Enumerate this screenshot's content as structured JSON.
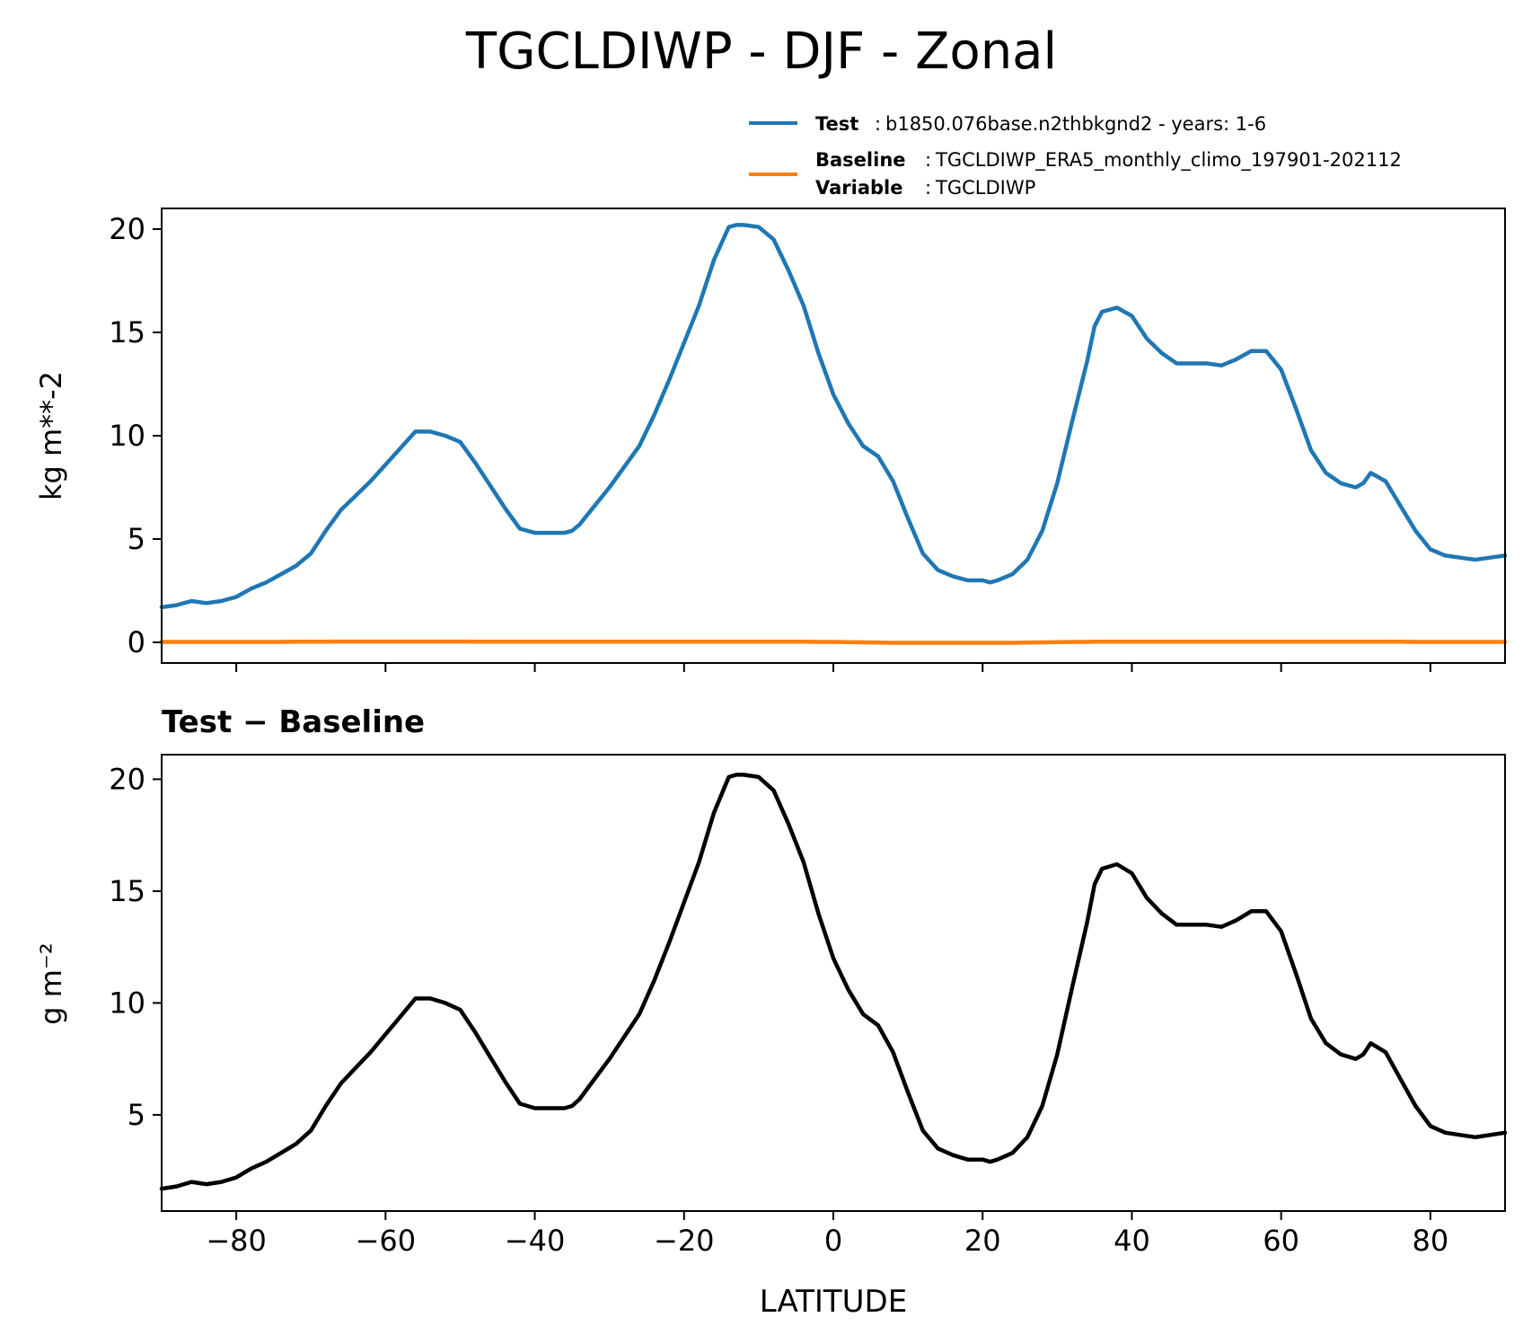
{
  "figure": {
    "title": "TGCLDIWP - DJF - Zonal"
  },
  "legend": {
    "test_label": "Test",
    "test_value": "b1850.076base.n2thbkgnd2 - years: 1-6",
    "baseline_label": "Baseline",
    "baseline_value": "TGCLDIWP_ERA5_monthly_climo_197901-202112",
    "variable_label": "Variable",
    "variable_value": "TGCLDIWP",
    "colors": {
      "test": "#1f77b4",
      "baseline": "#ff7f0e",
      "difference": "#000000"
    }
  },
  "chart_data": [
    {
      "type": "line",
      "title": "",
      "xlabel": "",
      "ylabel": "kg m**-2",
      "xlim": [
        -90,
        90
      ],
      "ylim": [
        -1,
        21
      ],
      "yticks": [
        0,
        5,
        10,
        15,
        20
      ],
      "xticks": [
        -80,
        -60,
        -40,
        -20,
        0,
        20,
        40,
        60,
        80
      ],
      "show_xticklabels": false,
      "legend_position": "above-right",
      "x": [
        -90,
        -88,
        -86,
        -84,
        -82,
        -80,
        -78,
        -76,
        -74,
        -72,
        -70,
        -68,
        -66,
        -64,
        -62,
        -60,
        -58,
        -56,
        -54,
        -52,
        -50,
        -48,
        -46,
        -44,
        -42,
        -40,
        -38,
        -36,
        -35,
        -34,
        -32,
        -30,
        -28,
        -26,
        -24,
        -22,
        -20,
        -18,
        -16,
        -14,
        -13,
        -12,
        -10,
        -8,
        -6,
        -4,
        -2,
        0,
        2,
        4,
        6,
        8,
        10,
        12,
        14,
        16,
        18,
        20,
        21,
        22,
        24,
        26,
        28,
        30,
        32,
        34,
        35,
        36,
        38,
        40,
        42,
        44,
        46,
        48,
        50,
        52,
        54,
        56,
        58,
        60,
        62,
        64,
        66,
        68,
        70,
        71,
        72,
        74,
        76,
        78,
        80,
        82,
        84,
        86,
        88,
        90
      ],
      "series": [
        {
          "name": "Test",
          "color": "#1f77b4",
          "values": [
            1.7,
            1.8,
            2.0,
            1.9,
            2.0,
            2.2,
            2.6,
            2.9,
            3.3,
            3.7,
            4.3,
            5.4,
            6.4,
            7.1,
            7.8,
            8.6,
            9.4,
            10.2,
            10.2,
            10.0,
            9.7,
            8.7,
            7.6,
            6.5,
            5.5,
            5.3,
            5.3,
            5.3,
            5.4,
            5.7,
            6.6,
            7.5,
            8.5,
            9.5,
            11.0,
            12.7,
            14.5,
            16.3,
            18.5,
            20.1,
            20.2,
            20.2,
            20.1,
            19.5,
            18.0,
            16.3,
            14.0,
            12.0,
            10.6,
            9.5,
            9.0,
            7.8,
            6.0,
            4.3,
            3.5,
            3.2,
            3.0,
            3.0,
            2.9,
            3.0,
            3.3,
            4.0,
            5.4,
            7.7,
            10.7,
            13.6,
            15.3,
            16.0,
            16.2,
            15.8,
            14.7,
            14.0,
            13.5,
            13.5,
            13.5,
            13.4,
            13.7,
            14.1,
            14.1,
            13.2,
            11.3,
            9.3,
            8.2,
            7.7,
            7.5,
            7.7,
            8.2,
            7.8,
            6.6,
            5.4,
            4.5,
            4.2,
            4.1,
            4.0,
            4.1,
            4.2
          ]
        },
        {
          "name": "Baseline",
          "color": "#ff7f0e",
          "values": [
            0.02,
            0.02,
            0.02,
            0.02,
            0.02,
            0.02,
            0.02,
            0.02,
            0.02,
            0.03,
            0.03,
            0.03,
            0.04,
            0.04,
            0.04,
            0.04,
            0.04,
            0.04,
            0.04,
            0.04,
            0.04,
            0.03,
            0.03,
            0.03,
            0.03,
            0.03,
            0.03,
            0.03,
            0.03,
            0.03,
            0.03,
            0.03,
            0.03,
            0.03,
            0.03,
            0.03,
            0.03,
            0.03,
            0.03,
            0.03,
            0.03,
            0.03,
            0.03,
            0.03,
            0.03,
            0.03,
            0.02,
            0.02,
            0.01,
            0.0,
            -0.01,
            -0.02,
            -0.02,
            -0.02,
            -0.02,
            -0.02,
            -0.02,
            -0.02,
            -0.02,
            -0.02,
            -0.02,
            -0.01,
            0.0,
            0.01,
            0.02,
            0.02,
            0.03,
            0.03,
            0.03,
            0.03,
            0.03,
            0.03,
            0.03,
            0.03,
            0.03,
            0.03,
            0.03,
            0.03,
            0.03,
            0.03,
            0.03,
            0.03,
            0.03,
            0.03,
            0.03,
            0.03,
            0.03,
            0.03,
            0.03,
            0.02,
            0.02,
            0.02,
            0.02,
            0.02,
            0.02,
            0.02
          ]
        }
      ]
    },
    {
      "type": "line",
      "title": "Test − Baseline",
      "xlabel": "LATITUDE",
      "ylabel": "g m⁻²",
      "xlim": [
        -90,
        90
      ],
      "ylim": [
        0.7,
        21.1
      ],
      "yticks": [
        5,
        10,
        15,
        20
      ],
      "xticks": [
        -80,
        -60,
        -40,
        -20,
        0,
        20,
        40,
        60,
        80
      ],
      "xticklabels": [
        "−80",
        "−60",
        "−40",
        "−20",
        "0",
        "20",
        "40",
        "60",
        "80"
      ],
      "show_xticklabels": true,
      "x": [
        -90,
        -88,
        -86,
        -84,
        -82,
        -80,
        -78,
        -76,
        -74,
        -72,
        -70,
        -68,
        -66,
        -64,
        -62,
        -60,
        -58,
        -56,
        -54,
        -52,
        -50,
        -48,
        -46,
        -44,
        -42,
        -40,
        -38,
        -36,
        -35,
        -34,
        -32,
        -30,
        -28,
        -26,
        -24,
        -22,
        -20,
        -18,
        -16,
        -14,
        -13,
        -12,
        -10,
        -8,
        -6,
        -4,
        -2,
        0,
        2,
        4,
        6,
        8,
        10,
        12,
        14,
        16,
        18,
        20,
        21,
        22,
        24,
        26,
        28,
        30,
        32,
        34,
        35,
        36,
        38,
        40,
        42,
        44,
        46,
        48,
        50,
        52,
        54,
        56,
        58,
        60,
        62,
        64,
        66,
        68,
        70,
        71,
        72,
        74,
        76,
        78,
        80,
        82,
        84,
        86,
        88,
        90
      ],
      "series": [
        {
          "color": "#000000",
          "values": [
            1.7,
            1.8,
            2.0,
            1.9,
            2.0,
            2.2,
            2.6,
            2.9,
            3.3,
            3.7,
            4.3,
            5.4,
            6.4,
            7.1,
            7.8,
            8.6,
            9.4,
            10.2,
            10.2,
            10.0,
            9.7,
            8.7,
            7.6,
            6.5,
            5.5,
            5.3,
            5.3,
            5.3,
            5.4,
            5.7,
            6.6,
            7.5,
            8.5,
            9.5,
            11.0,
            12.7,
            14.5,
            16.3,
            18.5,
            20.1,
            20.2,
            20.2,
            20.1,
            19.5,
            18.0,
            16.3,
            14.0,
            12.0,
            10.6,
            9.5,
            9.0,
            7.8,
            6.0,
            4.3,
            3.5,
            3.2,
            3.0,
            3.0,
            2.9,
            3.0,
            3.3,
            4.0,
            5.4,
            7.7,
            10.7,
            13.6,
            15.3,
            16.0,
            16.2,
            15.8,
            14.7,
            14.0,
            13.5,
            13.5,
            13.5,
            13.4,
            13.7,
            14.1,
            14.1,
            13.2,
            11.3,
            9.3,
            8.2,
            7.7,
            7.5,
            7.7,
            8.2,
            7.8,
            6.6,
            5.4,
            4.5,
            4.2,
            4.1,
            4.0,
            4.1,
            4.2
          ]
        }
      ]
    }
  ]
}
